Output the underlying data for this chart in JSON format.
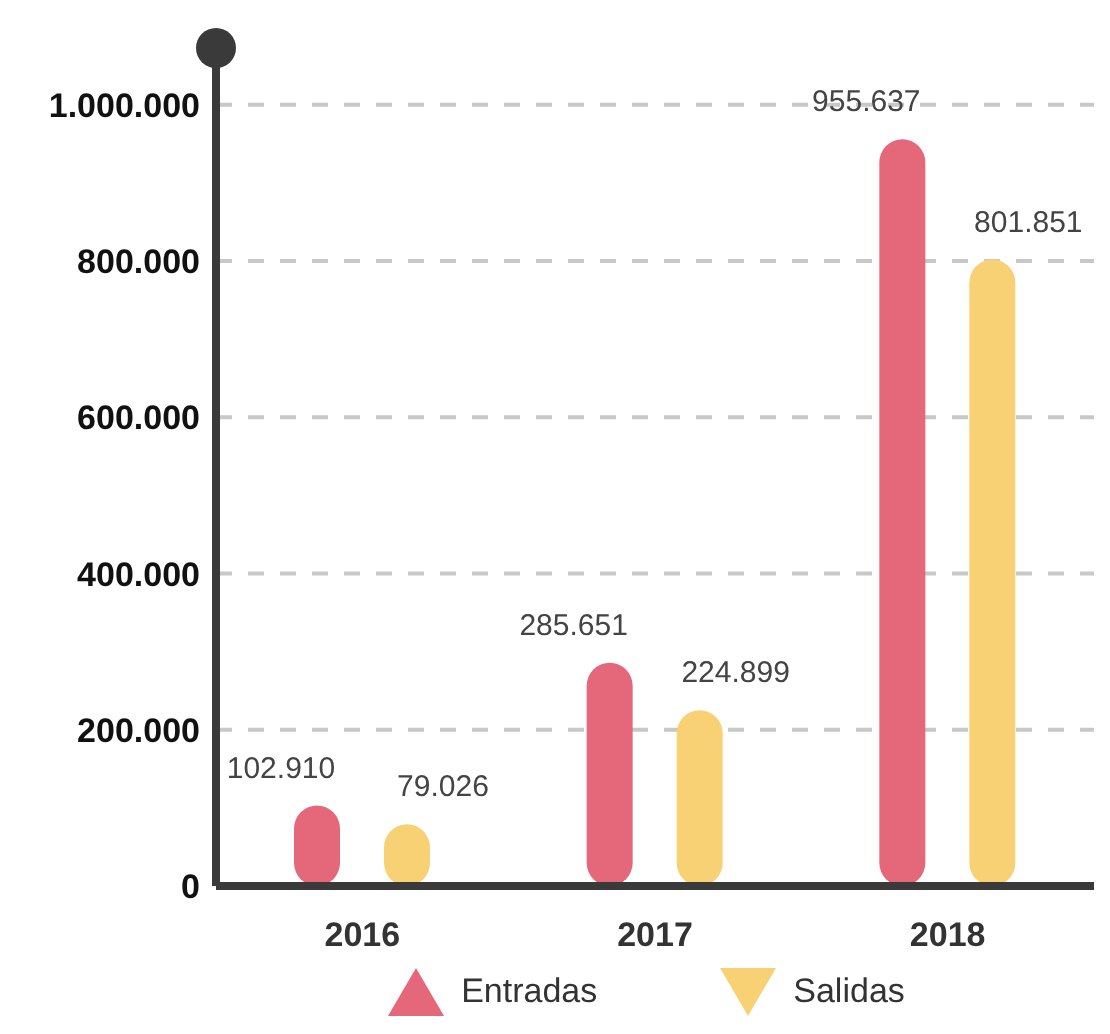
{
  "chart_data": {
    "type": "bar",
    "categories": [
      "2016",
      "2017",
      "2018"
    ],
    "series": [
      {
        "name": "Entradas",
        "color": "#e4687a",
        "values": [
          102910,
          285651,
          955637
        ],
        "value_labels": [
          "102.910",
          "285.651",
          "955.637"
        ]
      },
      {
        "name": "Salidas",
        "color": "#f7d174",
        "values": [
          79026,
          224899,
          801851
        ],
        "value_labels": [
          "79.026",
          "224.899",
          "801.851"
        ]
      }
    ],
    "ylim": [
      0,
      1070000
    ],
    "yticks": [
      0,
      {
        "value": 200000,
        "label": "200.000"
      },
      {
        "value": 400000,
        "label": "400.000"
      },
      {
        "value": 600000,
        "label": "600.000"
      },
      {
        "value": 800000,
        "label": "800.000"
      },
      {
        "value": 1000000,
        "label": "1.000.000"
      }
    ],
    "grid": "y",
    "legend": "bottom"
  }
}
